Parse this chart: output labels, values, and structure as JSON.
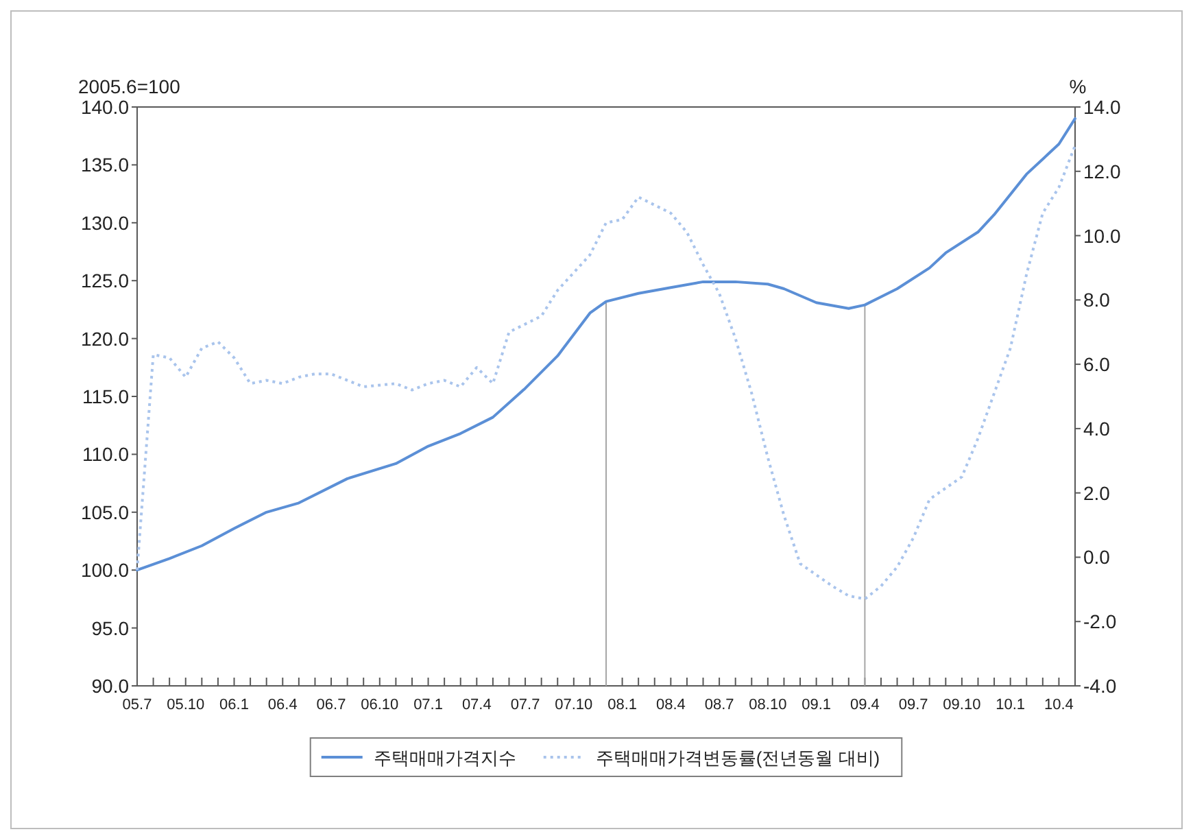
{
  "chart_data": {
    "type": "line",
    "ylabel": "2005.6=100",
    "y2label": "%",
    "legend": "bottom",
    "grid": false,
    "xlim": [
      "2005-07",
      "2010-05"
    ],
    "xticks": [
      {
        "value": "2005-07",
        "label": "05.7"
      },
      {
        "value": "2005-08",
        "label": null
      },
      {
        "value": "2005-09",
        "label": null
      },
      {
        "value": "2005-10",
        "label": "05.10"
      },
      {
        "value": "2005-11",
        "label": null
      },
      {
        "value": "2005-12",
        "label": null
      },
      {
        "value": "2006-01",
        "label": "06.1"
      },
      {
        "value": "2006-02",
        "label": null
      },
      {
        "value": "2006-03",
        "label": null
      },
      {
        "value": "2006-04",
        "label": "06.4"
      },
      {
        "value": "2006-05",
        "label": null
      },
      {
        "value": "2006-06",
        "label": null
      },
      {
        "value": "2006-07",
        "label": "06.7"
      },
      {
        "value": "2006-08",
        "label": null
      },
      {
        "value": "2006-09",
        "label": null
      },
      {
        "value": "2006-10",
        "label": "06.10"
      },
      {
        "value": "2006-11",
        "label": null
      },
      {
        "value": "2006-12",
        "label": null
      },
      {
        "value": "2007-01",
        "label": "07.1"
      },
      {
        "value": "2007-02",
        "label": null
      },
      {
        "value": "2007-03",
        "label": null
      },
      {
        "value": "2007-04",
        "label": "07.4"
      },
      {
        "value": "2007-05",
        "label": null
      },
      {
        "value": "2007-06",
        "label": null
      },
      {
        "value": "2007-07",
        "label": "07.7"
      },
      {
        "value": "2007-08",
        "label": null
      },
      {
        "value": "2007-09",
        "label": null
      },
      {
        "value": "2007-10",
        "label": "07.10"
      },
      {
        "value": "2007-11",
        "label": null
      },
      {
        "value": "2007-12",
        "label": null
      },
      {
        "value": "2008-01",
        "label": "08.1"
      },
      {
        "value": "2008-02",
        "label": null
      },
      {
        "value": "2008-03",
        "label": null
      },
      {
        "value": "2008-04",
        "label": "08.4"
      },
      {
        "value": "2008-05",
        "label": null
      },
      {
        "value": "2008-06",
        "label": null
      },
      {
        "value": "2008-07",
        "label": "08.7"
      },
      {
        "value": "2008-08",
        "label": null
      },
      {
        "value": "2008-09",
        "label": null
      },
      {
        "value": "2008-10",
        "label": "08.10"
      },
      {
        "value": "2008-11",
        "label": null
      },
      {
        "value": "2008-12",
        "label": null
      },
      {
        "value": "2009-01",
        "label": "09.1"
      },
      {
        "value": "2009-02",
        "label": null
      },
      {
        "value": "2009-03",
        "label": null
      },
      {
        "value": "2009-04",
        "label": "09.4"
      },
      {
        "value": "2009-05",
        "label": null
      },
      {
        "value": "2009-06",
        "label": null
      },
      {
        "value": "2009-07",
        "label": "09.7"
      },
      {
        "value": "2009-08",
        "label": null
      },
      {
        "value": "2009-09",
        "label": null
      },
      {
        "value": "2009-10",
        "label": "09.10"
      },
      {
        "value": "2009-11",
        "label": null
      },
      {
        "value": "2009-12",
        "label": null
      },
      {
        "value": "2010-01",
        "label": "10.1"
      },
      {
        "value": "2010-02",
        "label": null
      },
      {
        "value": "2010-03",
        "label": null
      },
      {
        "value": "2010-04",
        "label": "10.4"
      }
    ],
    "ylim": [
      90,
      140
    ],
    "yticks": [
      {
        "value": 90,
        "label": "90.0"
      },
      {
        "value": 95,
        "label": "95.0"
      },
      {
        "value": 100,
        "label": "100.0"
      },
      {
        "value": 105,
        "label": "105.0"
      },
      {
        "value": 110,
        "label": "110.0"
      },
      {
        "value": 115,
        "label": "115.0"
      },
      {
        "value": 120,
        "label": "120.0"
      },
      {
        "value": 125,
        "label": "125.0"
      },
      {
        "value": 130,
        "label": "130.0"
      },
      {
        "value": 135,
        "label": "135.0"
      },
      {
        "value": 140,
        "label": "140.0"
      }
    ],
    "y2lim": [
      -4,
      14
    ],
    "y2ticks": [
      {
        "value": -4,
        "label": "-4.0"
      },
      {
        "value": -2,
        "label": "-2.0"
      },
      {
        "value": 0,
        "label": "0.0"
      },
      {
        "value": 2,
        "label": "2.0"
      },
      {
        "value": 4,
        "label": "4.0"
      },
      {
        "value": 6,
        "label": "6.0"
      },
      {
        "value": 8,
        "label": "8.0"
      },
      {
        "value": 10,
        "label": "10.0"
      },
      {
        "value": 12,
        "label": "12.0"
      },
      {
        "value": 14,
        "label": "14.0"
      }
    ],
    "ref_lines": [
      {
        "axis": "x",
        "value": "2007-12",
        "color": "#a6a6a6"
      },
      {
        "axis": "x",
        "value": "2009-04",
        "color": "#a6a6a6"
      }
    ],
    "series": [
      {
        "name": "주택매매가격지수",
        "color": "#5b8fd6",
        "line_style": "solid",
        "x": [
          "2005-07",
          "2005-09",
          "2005-11",
          "2006-01",
          "2006-03",
          "2006-05",
          "2006-08",
          "2006-11",
          "2007-01",
          "2007-03",
          "2007-05",
          "2007-07",
          "2007-09",
          "2007-11",
          "2007-12",
          "2008-02",
          "2008-04",
          "2008-06",
          "2008-08",
          "2008-10",
          "2008-11",
          "2009-01",
          "2009-03",
          "2009-04",
          "2009-06",
          "2009-08",
          "2009-09",
          "2009-11",
          "2009-12",
          "2010-02",
          "2010-04",
          "2010-05"
        ],
        "values": [
          100.0,
          101.0,
          102.1,
          103.6,
          105.0,
          105.8,
          107.9,
          109.2,
          110.7,
          111.8,
          113.2,
          115.7,
          118.5,
          122.2,
          123.2,
          123.9,
          124.4,
          124.9,
          124.9,
          124.7,
          124.3,
          123.1,
          122.6,
          122.9,
          124.3,
          126.1,
          127.4,
          129.2,
          130.7,
          134.2,
          136.8,
          139.0
        ]
      },
      {
        "name": "주택매매가격변동률(전년동월 대비)",
        "color": "#a9c4ec",
        "line_style": "dotted",
        "axis": "y2",
        "x": [
          "2005-07",
          "2005-08",
          "2005-09",
          "2005-10",
          "2005-11",
          "2005-12",
          "2006-01",
          "2006-02",
          "2006-03",
          "2006-04",
          "2006-05",
          "2006-06",
          "2006-07",
          "2006-08",
          "2006-09",
          "2006-11",
          "2006-12",
          "2007-01",
          "2007-02",
          "2007-03",
          "2007-04",
          "2007-05",
          "2007-06",
          "2007-08",
          "2007-09",
          "2007-11",
          "2007-12",
          "2008-01",
          "2008-02",
          "2008-04",
          "2008-05",
          "2008-06",
          "2008-07",
          "2008-08",
          "2008-09",
          "2008-10",
          "2008-11",
          "2008-12",
          "2009-02",
          "2009-03",
          "2009-04",
          "2009-05",
          "2009-06",
          "2009-07",
          "2009-08",
          "2009-10",
          "2009-11",
          "2009-12",
          "2010-01",
          "2010-02",
          "2010-03",
          "2010-04",
          "2010-05"
        ],
        "values": [
          -0.4,
          6.3,
          6.2,
          5.6,
          6.5,
          6.7,
          6.2,
          5.4,
          5.5,
          5.4,
          5.6,
          5.7,
          5.7,
          5.5,
          5.3,
          5.4,
          5.2,
          5.4,
          5.5,
          5.3,
          5.9,
          5.4,
          7.0,
          7.5,
          8.3,
          9.4,
          10.4,
          10.5,
          11.2,
          10.7,
          10.1,
          9.1,
          8.2,
          6.8,
          5.1,
          3.1,
          1.3,
          -0.2,
          -0.9,
          -1.2,
          -1.3,
          -0.9,
          -0.3,
          0.6,
          1.8,
          2.5,
          3.7,
          5.1,
          6.5,
          8.8,
          10.7,
          11.5,
          12.8
        ]
      }
    ]
  }
}
